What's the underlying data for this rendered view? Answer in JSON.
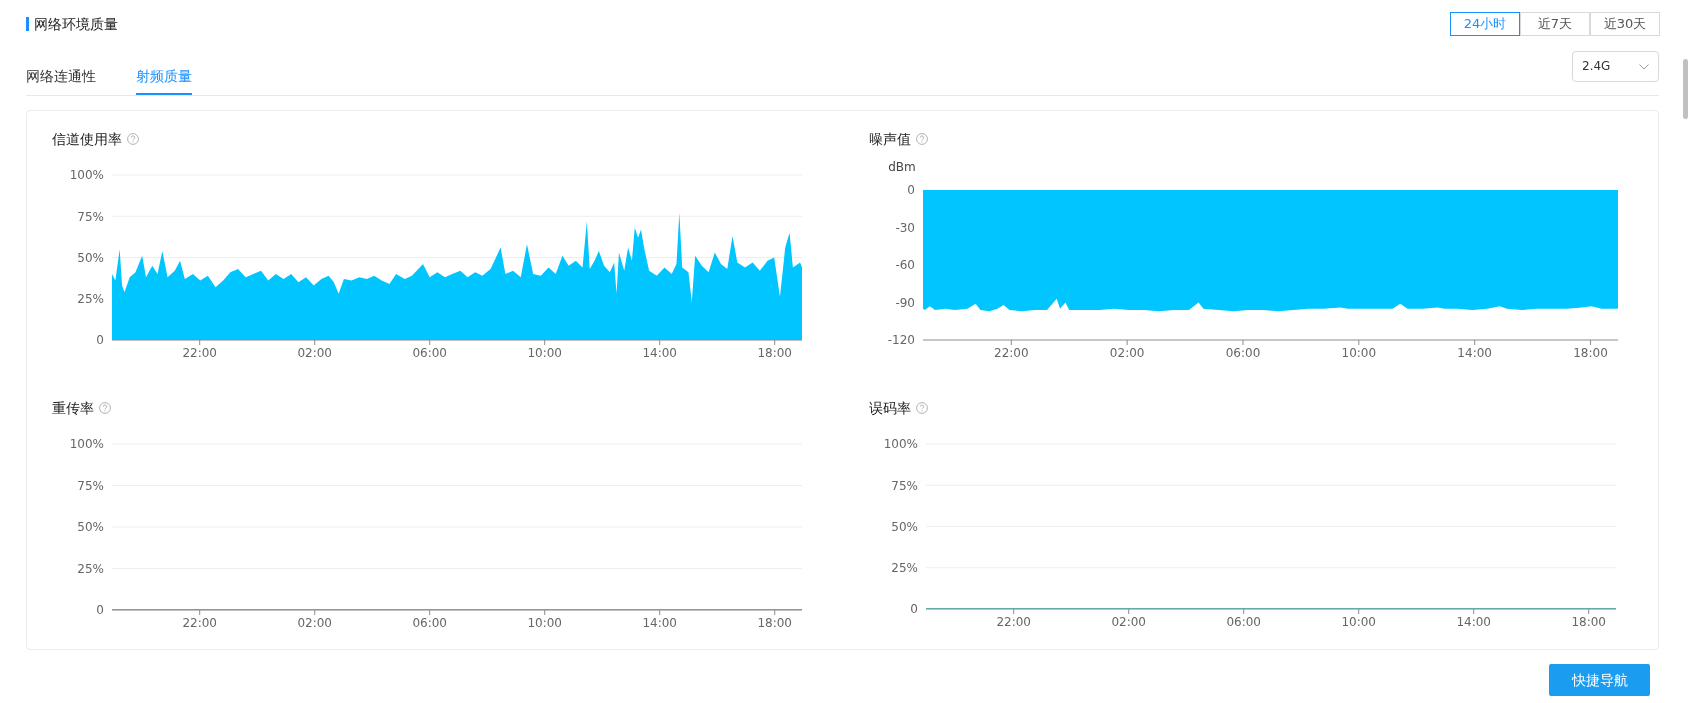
{
  "chart_data": [
    {
      "type": "other",
      "title": "网络环境质量",
      "annotations": [
        "24小时",
        "近7天",
        "近30天",
        "网络连通性",
        "射频质量",
        "2.4G",
        "快捷导航"
      ]
    },
    {
      "type": "area",
      "title": "信道使用率",
      "color": "#00c5ff",
      "xlim": [
        "--01-10T18:57",
        "--01-11T18:57"
      ],
      "xticks": [
        {
          "value": "--01-10T22:00",
          "label": "22:00"
        },
        {
          "value": "--01-11T02:00",
          "label": "02:00"
        },
        {
          "value": "--01-11T06:00",
          "label": "06:00"
        },
        {
          "value": "--01-11T10:00",
          "label": "10:00"
        },
        {
          "value": "--01-11T14:00",
          "label": "14:00"
        },
        {
          "value": "--01-11T18:00",
          "label": "18:00"
        }
      ],
      "ylim": [
        0,
        100
      ],
      "yticks": [
        0,
        {
          "value": 25,
          "label": "25%"
        },
        {
          "value": 50,
          "label": "50%"
        },
        {
          "value": 75,
          "label": "75%"
        },
        {
          "value": 100,
          "label": "100%"
        }
      ],
      "grid": "y",
      "x": [
        "--01-10T18:57",
        "--01-10T19:04",
        "--01-10T19:13",
        "--01-10T19:18",
        "--01-10T19:23",
        "--01-10T19:34",
        "--01-10T19:46",
        "--01-10T20:00",
        "--01-10T20:08",
        "--01-10T20:21",
        "--01-10T20:32",
        "--01-10T20:42",
        "--01-10T20:53",
        "--01-10T21:08",
        "--01-10T21:19",
        "--01-10T21:29",
        "--01-10T21:46",
        "--01-10T22:01",
        "--01-10T22:17",
        "--01-10T22:33",
        "--01-10T22:49",
        "--01-10T23:04",
        "--01-10T23:20",
        "--01-10T23:36",
        "--01-10T23:52",
        "--01-11T00:08",
        "--01-11T00:23",
        "--01-11T00:39",
        "--01-11T00:55",
        "--01-11T01:11",
        "--01-11T01:26",
        "--01-11T01:42",
        "--01-11T01:58",
        "--01-11T02:14",
        "--01-11T02:29",
        "--01-11T02:40",
        "--01-11T02:50",
        "--01-11T03:01",
        "--01-11T03:17",
        "--01-11T03:33",
        "--01-11T03:49",
        "--01-11T04:04",
        "--01-11T04:20",
        "--01-11T04:36",
        "--01-11T04:50",
        "--01-11T05:08",
        "--01-11T05:23",
        "--01-11T05:46",
        "--01-11T06:00",
        "--01-11T06:16",
        "--01-11T06:32",
        "--01-11T06:47",
        "--01-11T07:04",
        "--01-11T07:19",
        "--01-11T07:35",
        "--01-11T07:50",
        "--01-11T08:07",
        "--01-11T08:28",
        "--01-11T08:38",
        "--01-11T08:54",
        "--01-11T09:10",
        "--01-11T09:23",
        "--01-11T09:36",
        "--01-11T09:52",
        "--01-11T10:08",
        "--01-11T10:23",
        "--01-11T10:37",
        "--01-11T10:50",
        "--01-11T11:05",
        "--01-11T11:19",
        "--01-11T11:28",
        "--01-11T11:34",
        "--01-11T11:44",
        "--01-11T11:53",
        "--01-11T12:04",
        "--01-11T12:16",
        "--01-11T12:25",
        "--01-11T12:30",
        "--01-11T12:35",
        "--01-11T12:46",
        "--01-11T12:54",
        "--01-11T13:02",
        "--01-11T13:08",
        "--01-11T13:15",
        "--01-11T13:21",
        "--01-11T13:28",
        "--01-11T13:38",
        "--01-11T13:54",
        "--01-11T14:10",
        "--01-11T14:25",
        "--01-11T14:35",
        "--01-11T14:41",
        "--01-11T14:47",
        "--01-11T15:00",
        "--01-11T15:07",
        "--01-11T15:14",
        "--01-11T15:28",
        "--01-11T15:42",
        "--01-11T15:55",
        "--01-11T16:08",
        "--01-11T16:21",
        "--01-11T16:32",
        "--01-11T16:42",
        "--01-11T16:58",
        "--01-11T17:14",
        "--01-11T17:29",
        "--01-11T17:45",
        "--01-11T17:59",
        "--01-11T18:11",
        "--01-11T18:22",
        "--01-11T18:31",
        "--01-11T18:38",
        "--01-11T18:53",
        "--01-11T18:57"
      ],
      "values": [
        40,
        36,
        55,
        33,
        29,
        38,
        41,
        51,
        38,
        45,
        40,
        54,
        38,
        42,
        48,
        37,
        40,
        36,
        39,
        32,
        36,
        41,
        43,
        38,
        40,
        42,
        36,
        40,
        37,
        40,
        35,
        38,
        33,
        37,
        39,
        35,
        28,
        37,
        36,
        38,
        37,
        39,
        36,
        34,
        40,
        37,
        39,
        46,
        38,
        41,
        38,
        40,
        42,
        38,
        41,
        39,
        43,
        56,
        40,
        42,
        38,
        58,
        40,
        39,
        44,
        40,
        51,
        45,
        48,
        44,
        72,
        43,
        48,
        54,
        45,
        41,
        47,
        28,
        53,
        42,
        56,
        48,
        68,
        62,
        67,
        55,
        42,
        39,
        44,
        40,
        46,
        77,
        44,
        41,
        23,
        51,
        45,
        41,
        53,
        46,
        43,
        63,
        47,
        44,
        47,
        42,
        48,
        50,
        26,
        56,
        65,
        44,
        47,
        44
      ]
    },
    {
      "type": "area",
      "title": "噪声值",
      "ylabel": "dBm",
      "color": "#00c5ff",
      "xlim": [
        "--01-10T18:57",
        "--01-11T18:57"
      ],
      "xticks": [
        {
          "value": "--01-10T22:00",
          "label": "22:00"
        },
        {
          "value": "--01-11T02:00",
          "label": "02:00"
        },
        {
          "value": "--01-11T06:00",
          "label": "06:00"
        },
        {
          "value": "--01-11T10:00",
          "label": "10:00"
        },
        {
          "value": "--01-11T14:00",
          "label": "14:00"
        },
        {
          "value": "--01-11T18:00",
          "label": "18:00"
        }
      ],
      "ylim": [
        -120,
        0
      ],
      "yticks": [
        -120,
        -90,
        -60,
        -30,
        0
      ],
      "x": [
        "--01-10T18:57",
        "--01-10T19:01",
        "--01-10T19:11",
        "--01-10T19:22",
        "--01-10T19:43",
        "--01-10T20:03",
        "--01-10T20:29",
        "--01-10T20:46",
        "--01-10T20:56",
        "--01-10T21:15",
        "--01-10T21:31",
        "--01-10T21:44",
        "--01-10T21:56",
        "--01-10T22:22",
        "--01-10T22:48",
        "--01-10T23:14",
        "--01-10T23:34",
        "--01-10T23:41",
        "--01-10T23:52",
        "--01-11T00:00",
        "--01-11T00:31",
        "--01-11T01:02",
        "--01-11T01:33",
        "--01-11T02:04",
        "--01-11T02:35",
        "--01-11T03:05",
        "--01-11T03:37",
        "--01-11T04:08",
        "--01-11T04:28",
        "--01-11T04:38",
        "--01-11T05:10",
        "--01-11T05:40",
        "--01-11T06:11",
        "--01-11T06:42",
        "--01-11T07:13",
        "--01-11T07:44",
        "--01-11T08:15",
        "--01-11T08:46",
        "--01-11T09:22",
        "--01-11T09:37",
        "--01-11T10:08",
        "--01-11T10:39",
        "--01-11T11:10",
        "--01-11T11:26",
        "--01-11T11:41",
        "--01-11T12:12",
        "--01-11T12:43",
        "--01-11T12:58",
        "--01-11T13:24",
        "--01-11T13:55",
        "--01-11T14:26",
        "--01-11T14:52",
        "--01-11T15:07",
        "--01-11T15:38",
        "--01-11T16:09",
        "--01-11T16:40",
        "--01-11T17:11",
        "--01-11T17:42",
        "--01-11T18:02",
        "--01-11T18:23",
        "--01-11T18:49",
        "--01-11T18:57"
      ],
      "values": [
        -95,
        -96,
        -93,
        -96,
        -95,
        -96,
        -95,
        -91,
        -96,
        -97,
        -95,
        -92,
        -96,
        -97,
        -96,
        -96,
        -87,
        -95,
        -90,
        -96,
        -96,
        -96,
        -95,
        -96,
        -96,
        -97,
        -96,
        -96,
        -90,
        -95,
        -96,
        -97,
        -96,
        -96,
        -97,
        -96,
        -95,
        -95,
        -94,
        -95,
        -95,
        -95,
        -95,
        -91,
        -95,
        -95,
        -94,
        -95,
        -95,
        -96,
        -95,
        -93,
        -95,
        -96,
        -95,
        -95,
        -95,
        -94,
        -93,
        -95,
        -95,
        -95
      ]
    },
    {
      "type": "line",
      "title": "重传率",
      "color": "#3cc9c1",
      "xlim": [
        "--01-10T18:57",
        "--01-11T18:57"
      ],
      "xticks": [
        {
          "value": "--01-10T22:00",
          "label": "22:00"
        },
        {
          "value": "--01-11T02:00",
          "label": "02:00"
        },
        {
          "value": "--01-11T06:00",
          "label": "06:00"
        },
        {
          "value": "--01-11T10:00",
          "label": "10:00"
        },
        {
          "value": "--01-11T14:00",
          "label": "14:00"
        },
        {
          "value": "--01-11T18:00",
          "label": "18:00"
        }
      ],
      "ylim": [
        0,
        100
      ],
      "yticks": [
        0,
        {
          "value": 25,
          "label": "25%"
        },
        {
          "value": 50,
          "label": "50%"
        },
        {
          "value": 75,
          "label": "75%"
        },
        {
          "value": 100,
          "label": "100%"
        }
      ],
      "grid": "y",
      "x": [
        "--01-10T18:57",
        "--01-10T19:57",
        "--01-10T20:57",
        "--01-10T21:57",
        "--01-10T22:57",
        "--01-10T23:57",
        "--01-11T00:57",
        "--01-11T01:57",
        "--01-11T02:57",
        "--01-11T03:57",
        "--01-11T04:57",
        "--01-11T05:57",
        "--01-11T06:57",
        "--01-11T07:57",
        "--01-11T08:57",
        "--01-11T09:57",
        "--01-11T10:57",
        "--01-11T11:57",
        "--01-11T12:57",
        "--01-11T13:57",
        "--01-11T14:57",
        "--01-11T15:57",
        "--01-11T16:57",
        "--01-11T17:57",
        "--01-11T18:57"
      ],
      "values": [
        0,
        0,
        0,
        0,
        0,
        0,
        0,
        0,
        0,
        0,
        0,
        0,
        0,
        0,
        0,
        0,
        0,
        0,
        0,
        0,
        0,
        0,
        0,
        0,
        0
      ]
    },
    {
      "type": "line",
      "title": "误码率",
      "color": "#3cc9c1",
      "xlim": [
        "--01-10T18:57",
        "--01-11T18:57"
      ],
      "xticks": [
        {
          "value": "--01-10T22:00",
          "label": "22:00"
        },
        {
          "value": "--01-11T02:00",
          "label": "02:00"
        },
        {
          "value": "--01-11T06:00",
          "label": "06:00"
        },
        {
          "value": "--01-11T10:00",
          "label": "10:00"
        },
        {
          "value": "--01-11T14:00",
          "label": "14:00"
        },
        {
          "value": "--01-11T18:00",
          "label": "18:00"
        }
      ],
      "ylim": [
        0,
        100
      ],
      "yticks": [
        0,
        {
          "value": 25,
          "label": "25%"
        },
        {
          "value": 50,
          "label": "50%"
        },
        {
          "value": 75,
          "label": "75%"
        },
        {
          "value": 100,
          "label": "100%"
        }
      ],
      "grid": "y",
      "x": [
        "--01-10T18:57",
        "--01-10T19:57",
        "--01-10T20:57",
        "--01-10T21:57",
        "--01-10T22:57",
        "--01-10T23:57",
        "--01-11T00:57",
        "--01-11T01:57",
        "--01-11T02:57",
        "--01-11T03:57",
        "--01-11T04:57",
        "--01-11T05:57",
        "--01-11T06:57",
        "--01-11T07:57",
        "--01-11T08:57",
        "--01-11T09:57",
        "--01-11T10:57",
        "--01-11T11:57",
        "--01-11T12:57",
        "--01-11T13:57",
        "--01-11T14:57",
        "--01-11T15:57",
        "--01-11T16:57",
        "--01-11T17:57",
        "--01-11T18:57"
      ],
      "values": [
        0,
        0,
        0,
        0,
        0,
        0,
        0,
        0,
        0,
        0,
        0,
        0,
        0,
        0,
        0,
        0,
        0,
        0,
        0,
        0,
        0,
        0,
        0,
        0,
        0
      ]
    }
  ]
}
